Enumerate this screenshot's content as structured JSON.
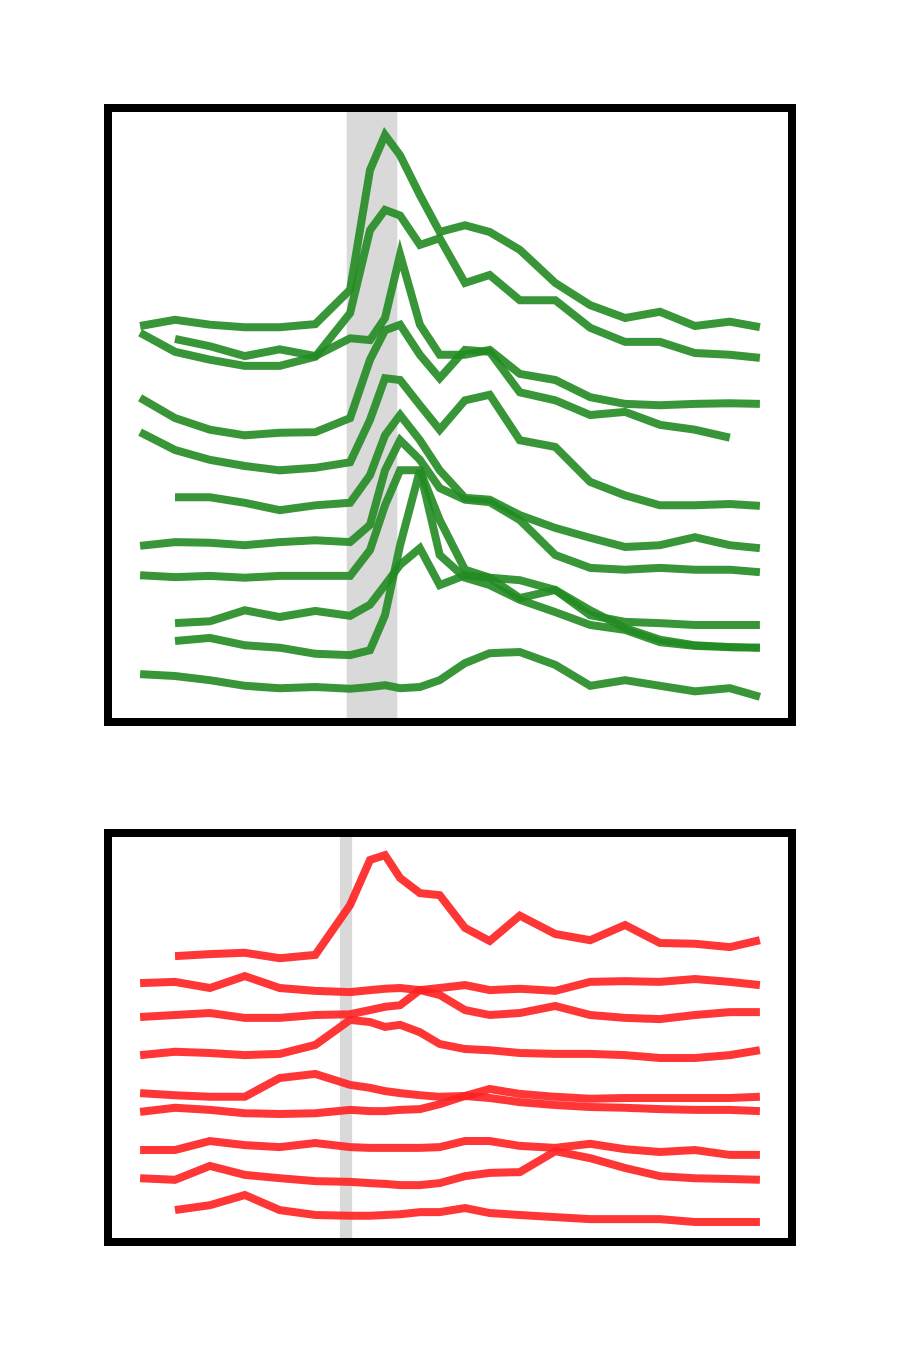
{
  "chart_data": [
    {
      "type": "line",
      "color": "#228b22",
      "alpha": 0.9,
      "xlim": [
        0,
        100
      ],
      "ylim": [
        0,
        100
      ],
      "shaded_span": [
        34.9,
        42.3
      ],
      "x": [
        4.7,
        9.8,
        14.9,
        20,
        25.1,
        30.3,
        35.4,
        38.3,
        40.5,
        42.7,
        45.6,
        48.5,
        52.2,
        55.8,
        60.2,
        65.4,
        70.5,
        75.6,
        80.7,
        85.8,
        90.9,
        95.3
      ],
      "series": [
        {
          "values": [
            64.5,
            65.5,
            64.7,
            64.3,
            64.3,
            64.8,
            70.4,
            89.9,
            95.6,
            92.3,
            85.8,
            79.8,
            80.9,
            79.8,
            76.9,
            71.5,
            67.9,
            65.8,
            66.8,
            64.5,
            65.2,
            64.3
          ]
        },
        {
          "values": [
            63.4,
            60.3,
            59.0,
            58.0,
            58.0,
            59.5,
            66.6,
            80.1,
            83.4,
            82.5,
            77.7,
            78.8,
            71.5,
            72.8,
            68.7,
            68.7,
            64.2,
            61.9,
            61.9,
            60.1,
            59.8,
            59.3
          ]
        },
        {
          "values": [
            null,
            62.4,
            61.2,
            59.6,
            60.7,
            59.6,
            62.5,
            62.2,
            65.8,
            76.1,
            64.7,
            59.8,
            59.8,
            60.6,
            56.7,
            55.7,
            52.9,
            51.8,
            51.6,
            51.8,
            51.9,
            51.8
          ]
        },
        {
          "values": [
            52.8,
            49.5,
            47.6,
            46.7,
            47.1,
            47.2,
            49.5,
            59.0,
            63.8,
            64.7,
            59.8,
            56.0,
            60.6,
            60.3,
            53.7,
            52.4,
            50.0,
            50.5,
            48.4,
            47.6,
            46.3,
            null
          ]
        },
        {
          "values": [
            47.2,
            44.3,
            42.7,
            41.7,
            41.0,
            41.4,
            42.3,
            49.2,
            56.0,
            55.7,
            51.6,
            47.6,
            52.4,
            53.3,
            45.9,
            44.8,
            39.1,
            36.9,
            35.3,
            35.3,
            35.5,
            35.2
          ]
        },
        {
          "values": [
            null,
            36.6,
            36.6,
            35.7,
            34.5,
            35.3,
            35.7,
            40.2,
            46.7,
            50.0,
            45.9,
            41.0,
            36.5,
            36.2,
            33.7,
            31.6,
            30.0,
            28.5,
            28.8,
            30.1,
            28.8,
            28.3
          ]
        },
        {
          "values": [
            28.7,
            29.3,
            29.2,
            28.8,
            29.3,
            29.6,
            29.3,
            32.1,
            41.0,
            45.9,
            42.7,
            38.1,
            36.2,
            35.8,
            32.9,
            27.2,
            25.1,
            24.8,
            25.1,
            24.8,
            24.8,
            24.4
          ]
        },
        {
          "values": [
            23.9,
            23.6,
            23.8,
            23.5,
            23.8,
            23.8,
            23.8,
            28.0,
            35.3,
            41.0,
            41.0,
            32.9,
            24.8,
            23.5,
            23.1,
            21.5,
            18.2,
            15.3,
            13.4,
            12.5,
            12.2,
            12.1
          ]
        },
        {
          "values": [
            null,
            16.1,
            16.4,
            18.2,
            17.1,
            18.1,
            17.3,
            19.1,
            22.3,
            25.6,
            28.3,
            22.3,
            23.9,
            23.5,
            20.2,
            21.5,
            17.4,
            16.3,
            16.1,
            15.8,
            15.8,
            15.8
          ]
        },
        {
          "values": [
            null,
            13.2,
            13.7,
            12.5,
            12.1,
            11.1,
            10.9,
            11.7,
            17.4,
            28.8,
            41.0,
            27.2,
            23.5,
            22.3,
            19.9,
            17.9,
            15.8,
            15.0,
            13.0,
            12.4,
            12.2,
            12.1
          ]
        },
        {
          "values": [
            7.8,
            7.5,
            6.8,
            5.9,
            5.5,
            5.7,
            5.4,
            5.7,
            6.0,
            5.5,
            5.7,
            6.8,
            9.6,
            11.2,
            11.4,
            9.3,
            5.9,
            6.8,
            5.9,
            5.0,
            5.5,
            4.1
          ]
        }
      ]
    },
    {
      "type": "line",
      "color": "#ff2020",
      "alpha": 0.9,
      "xlim": [
        0,
        100
      ],
      "ylim": [
        0,
        100
      ],
      "shaded_span": [
        33.9,
        35.7
      ],
      "x": [
        4.7,
        9.8,
        14.9,
        20,
        25.1,
        30.3,
        35.4,
        38.3,
        40.5,
        42.7,
        45.6,
        48.5,
        52.2,
        55.8,
        60.2,
        65.4,
        70.5,
        75.6,
        80.7,
        85.8,
        90.9,
        95.3
      ],
      "series": [
        {
          "values": [
            null,
            69.9,
            70.4,
            70.7,
            69.4,
            70.2,
            82.4,
            93.4,
            94.6,
            89.0,
            85.3,
            84.8,
            76.8,
            73.6,
            79.8,
            75.3,
            73.8,
            77.5,
            73.1,
            72.9,
            72.1,
            73.8
          ]
        },
        {
          "values": [
            63.3,
            63.6,
            62.1,
            65.0,
            62.1,
            61.4,
            61.1,
            61.6,
            61.9,
            62.1,
            61.6,
            62.1,
            62.8,
            61.6,
            61.9,
            61.4,
            63.6,
            63.8,
            63.6,
            64.3,
            63.6,
            62.8
          ]
        },
        {
          "values": [
            55.0,
            55.5,
            56.0,
            54.8,
            54.8,
            55.5,
            55.7,
            56.7,
            57.5,
            57.9,
            61.6,
            60.4,
            56.7,
            55.5,
            56.0,
            57.7,
            55.5,
            54.8,
            54.5,
            55.5,
            56.2,
            56.2
          ]
        },
        {
          "values": [
            45.7,
            46.5,
            46.2,
            45.7,
            46.0,
            48.2,
            54.3,
            53.8,
            52.6,
            53.1,
            51.3,
            48.4,
            47.2,
            46.9,
            46.2,
            46.0,
            46.0,
            45.7,
            45.0,
            45.0,
            45.7,
            46.9
          ]
        },
        {
          "values": [
            36.4,
            35.9,
            35.5,
            35.5,
            40.1,
            41.1,
            38.4,
            37.7,
            36.9,
            36.4,
            35.9,
            35.5,
            35.7,
            35.2,
            34.2,
            33.5,
            33.0,
            32.8,
            32.5,
            32.3,
            32.3,
            32.0
          ]
        },
        {
          "values": [
            31.8,
            32.8,
            32.3,
            31.5,
            31.3,
            31.5,
            32.3,
            32.0,
            32.0,
            32.3,
            32.5,
            33.7,
            35.7,
            37.4,
            36.2,
            35.5,
            35.0,
            35.2,
            35.2,
            35.2,
            35.2,
            35.5
          ]
        },
        {
          "values": [
            22.5,
            22.5,
            24.7,
            23.7,
            23.2,
            24.2,
            23.2,
            23.0,
            23.0,
            23.0,
            23.0,
            23.2,
            24.7,
            24.7,
            23.5,
            23.0,
            24.0,
            22.7,
            22.0,
            22.5,
            21.3,
            21.3
          ]
        },
        {
          "values": [
            15.6,
            15.2,
            18.6,
            16.4,
            15.6,
            14.9,
            14.7,
            14.4,
            14.2,
            13.9,
            13.9,
            14.4,
            16.1,
            16.9,
            17.1,
            22.2,
            20.5,
            18.1,
            16.1,
            15.6,
            15.4,
            15.2
          ]
        },
        {
          "values": [
            null,
            7.8,
            9.0,
            11.5,
            7.8,
            6.6,
            6.4,
            6.4,
            6.6,
            6.8,
            7.3,
            7.3,
            8.3,
            7.1,
            6.6,
            6.1,
            5.6,
            5.6,
            5.6,
            4.9,
            4.9,
            4.9
          ]
        }
      ]
    }
  ]
}
